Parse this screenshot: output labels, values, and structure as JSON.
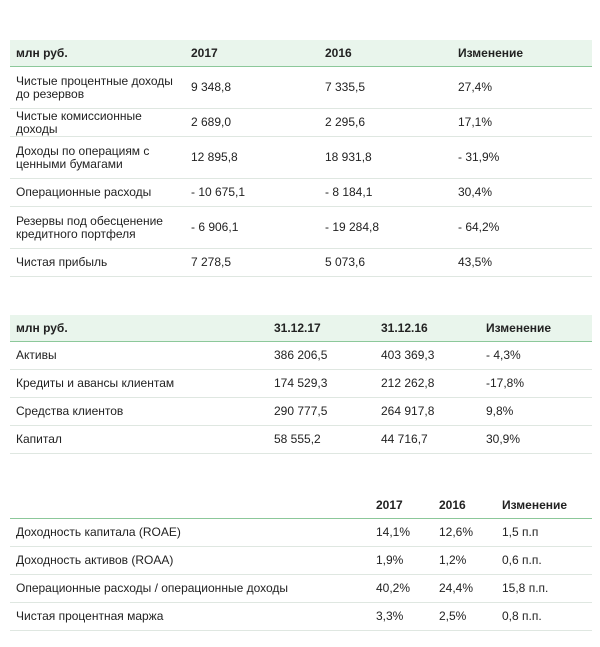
{
  "tables": [
    {
      "header": [
        "млн руб.",
        "2017",
        "2016",
        "Изменение"
      ],
      "rows": [
        [
          "Чистые процентные доходы до резервов",
          "9 348,8",
          "7 335,5",
          "27,4%"
        ],
        [
          "Чистые комиссионные доходы",
          "2 689,0",
          "2 295,6",
          "17,1%"
        ],
        [
          "Доходы по операциям с ценными бумагами",
          "12 895,8",
          "18 931,8",
          "- 31,9%"
        ],
        [
          "Операционные расходы",
          "- 10 675,1",
          "- 8 184,1",
          "30,4%"
        ],
        [
          "Резервы под обесценение кредитного портфеля",
          "- 6 906,1",
          "- 19 284,8",
          "- 64,2%"
        ],
        [
          "Чистая прибыль",
          "7 278,5",
          "5 073,6",
          "43,5%"
        ]
      ]
    },
    {
      "header": [
        "млн руб.",
        "31.12.17",
        "31.12.16",
        "Изменение"
      ],
      "rows": [
        [
          "Активы",
          "386 206,5",
          "403 369,3",
          "- 4,3%"
        ],
        [
          "Кредиты и авансы клиентам",
          "174 529,3",
          "212 262,8",
          "-17,8%"
        ],
        [
          "Средства клиентов",
          "290 777,5",
          "264 917,8",
          "9,8%"
        ],
        [
          "Капитал",
          "58 555,2",
          "44 716,7",
          "30,9%"
        ]
      ]
    },
    {
      "header": [
        null,
        "2017",
        "2016",
        "Изменение"
      ],
      "rows": [
        [
          "Доходность капитала (ROAE)",
          "14,1%",
          "12,6%",
          "1,5 п.п"
        ],
        [
          "Доходность активов (ROAA)",
          "1,9%",
          "1,2%",
          "0,6 п.п."
        ],
        [
          "Операционные расходы / операционные доходы",
          "40,2%",
          "24,4%",
          "15,8 п.п."
        ],
        [
          "Чистая процентная маржа",
          "3,3%",
          "2,5%",
          "0,8 п.п."
        ]
      ]
    }
  ]
}
